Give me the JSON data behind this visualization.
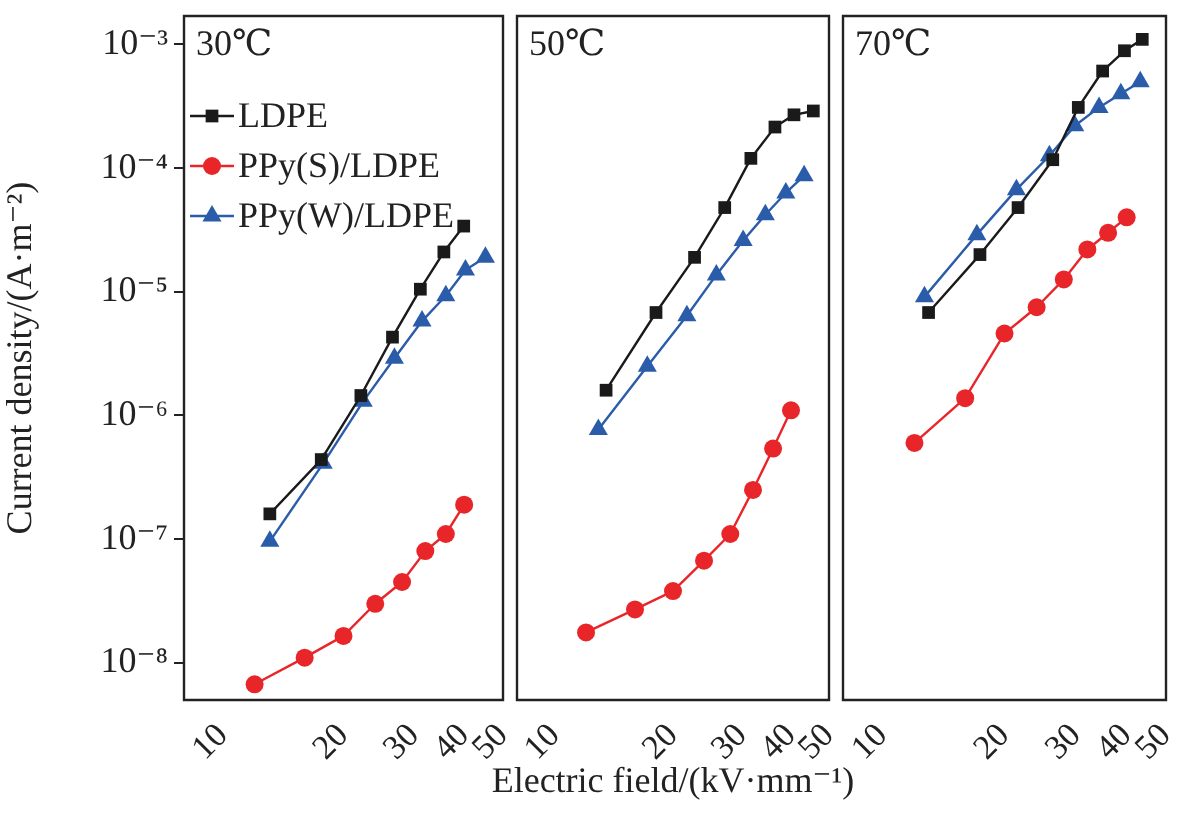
{
  "chart_data": [
    {
      "type": "line",
      "title": "30℃",
      "ylabel": "Current density/(A·m⁻²)",
      "log": "xy",
      "legend": "top left",
      "tick_labels": true,
      "xlim": [
        8,
        50
      ],
      "xticks": [
        10,
        20,
        30,
        40,
        50
      ],
      "ylim": [
        5e-09,
        0.0017
      ],
      "yticks": [
        {
          "value": 1e-08,
          "label": "10⁻⁸"
        },
        {
          "value": 1e-07,
          "label": "10⁻⁷"
        },
        {
          "value": 1e-06,
          "label": "10⁻⁶"
        },
        {
          "value": 1e-05,
          "label": "10⁻⁵"
        },
        {
          "value": 0.0001,
          "label": "10⁻⁴"
        },
        {
          "value": 0.001,
          "label": "10⁻³"
        }
      ],
      "series": [
        {
          "name": "LDPE",
          "color": "#1a1a1a",
          "marker": "square",
          "x": [
            13.1,
            17.6,
            22.1,
            26.5,
            31.1,
            35.6,
            39.9
          ],
          "values": [
            1.6e-07,
            4.4e-07,
            1.45e-06,
            4.3e-06,
            1.05e-05,
            2.1e-05,
            3.4e-05
          ]
        },
        {
          "name": "PPy(S)/LDPE",
          "color": "#e8262a",
          "marker": "circle",
          "x": [
            12,
            16,
            20,
            24,
            28,
            32,
            36,
            40
          ],
          "values": [
            6.7e-09,
            1.1e-08,
            1.65e-08,
            3e-08,
            4.5e-08,
            8e-08,
            1.1e-07,
            1.9e-07
          ]
        },
        {
          "name": "PPy(W)/LDPE",
          "color": "#2a5caa",
          "marker": "triangle",
          "x": [
            13.1,
            17.8,
            22.4,
            26.8,
            31.4,
            36,
            40.3,
            45.2
          ],
          "values": [
            9.6e-08,
            4.1e-07,
            1.3e-06,
            2.9e-06,
            5.8e-06,
            9.3e-06,
            1.5e-05,
            1.9e-05
          ]
        }
      ]
    },
    {
      "type": "line",
      "title": "50℃",
      "xlabel": "Electric field/(kV·mm⁻¹)",
      "log": "xy",
      "tick_labels": "x",
      "xlim": [
        8,
        50
      ],
      "xticks": [
        10,
        20,
        30,
        40,
        50
      ],
      "ylim": [
        5e-09,
        0.0017
      ],
      "yticks": [
        {
          "value": 1e-08,
          "label": null
        },
        {
          "value": 1e-07,
          "label": null
        },
        {
          "value": 1e-06,
          "label": null
        },
        {
          "value": 1e-05,
          "label": null
        },
        {
          "value": 0.0001,
          "label": null
        },
        {
          "value": 0.001,
          "label": null
        }
      ],
      "series": [
        {
          "color": "#1a1a1a",
          "marker": "square",
          "x": [
            13.5,
            18.1,
            22.7,
            27.1,
            31.6,
            36.4,
            40.7,
            45.6
          ],
          "values": [
            1.6e-06,
            6.8e-06,
            1.9e-05,
            4.8e-05,
            0.00012,
            0.000215,
            0.00027,
            0.00029
          ]
        },
        {
          "color": "#e8262a",
          "marker": "circle",
          "x": [
            12,
            16,
            20,
            24,
            28,
            32,
            36,
            40
          ],
          "values": [
            1.76e-08,
            2.7e-08,
            3.8e-08,
            6.7e-08,
            1.1e-07,
            2.5e-07,
            5.4e-07,
            1.1e-06
          ]
        },
        {
          "color": "#2a5caa",
          "marker": "triangle",
          "x": [
            12.9,
            17.2,
            21.7,
            25.8,
            30.2,
            34.4,
            38.8,
            43.2
          ],
          "values": [
            7.7e-07,
            2.5e-06,
            6.4e-06,
            1.37e-05,
            2.6e-05,
            4.2e-05,
            6.3e-05,
            8.7e-05
          ]
        }
      ]
    },
    {
      "type": "line",
      "title": "70℃",
      "log": "xy",
      "tick_labels": "x",
      "xlim": [
        8,
        50
      ],
      "xticks": [
        10,
        20,
        30,
        40,
        50
      ],
      "ylim": [
        5e-09,
        0.0017
      ],
      "yticks": [
        {
          "value": 1e-08,
          "label": null
        },
        {
          "value": 1e-07,
          "label": null
        },
        {
          "value": 1e-06,
          "label": null
        },
        {
          "value": 1e-05,
          "label": null
        },
        {
          "value": 0.0001,
          "label": null
        },
        {
          "value": 0.001,
          "label": null
        }
      ],
      "series": [
        {
          "color": "#1a1a1a",
          "marker": "square",
          "x": [
            13,
            17.4,
            21.6,
            26.3,
            30.4,
            34.9,
            39.5,
            43.7
          ],
          "values": [
            6.8e-06,
            2e-05,
            4.8e-05,
            0.000117,
            0.00031,
            0.00061,
            0.00089,
            0.0011
          ]
        },
        {
          "color": "#e8262a",
          "marker": "circle",
          "x": [
            12,
            16,
            20,
            24,
            28,
            32,
            36,
            40
          ],
          "values": [
            6e-07,
            1.38e-06,
            4.6e-06,
            7.5e-06,
            1.26e-05,
            2.2e-05,
            3e-05,
            4e-05
          ]
        },
        {
          "color": "#2a5caa",
          "marker": "triangle",
          "x": [
            12.7,
            17.1,
            21.4,
            25.8,
            29.8,
            34.2,
            38.7,
            43.2
          ],
          "values": [
            9.1e-06,
            2.9e-05,
            6.7e-05,
            0.000126,
            0.00022,
            0.00031,
            0.0004,
            0.0005
          ]
        }
      ]
    }
  ]
}
